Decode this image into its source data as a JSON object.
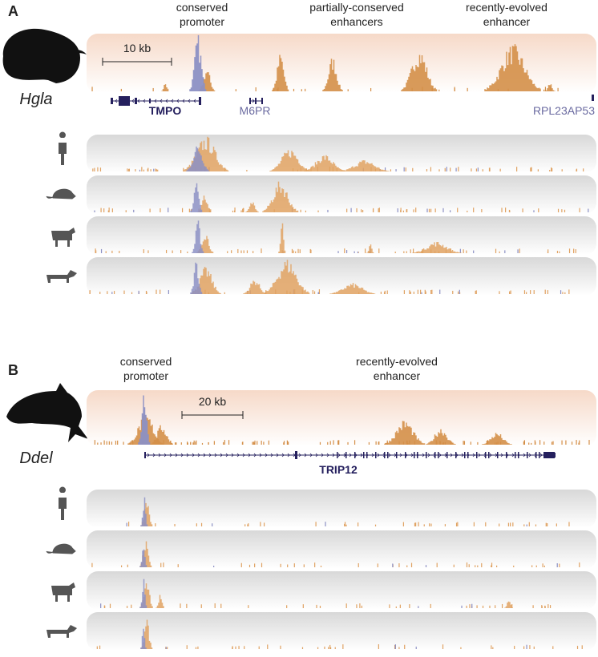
{
  "panels": [
    {
      "label": "A",
      "annotations": [
        {
          "lines": [
            "conserved",
            "promoter"
          ]
        },
        {
          "lines": [
            "partially-conserved",
            "enhancers"
          ]
        },
        {
          "lines": [
            "recently-evolved",
            "enhancer"
          ]
        }
      ],
      "species": "Hgla",
      "scale_bar": "10 kb",
      "genes": [
        "TMPO",
        "M6PR",
        "RPL23AP53"
      ]
    },
    {
      "label": "B",
      "annotations": [
        {
          "lines": [
            "conserved",
            "promoter"
          ]
        },
        {
          "lines": [
            "recently-evolved",
            "enhancer"
          ]
        }
      ],
      "species": "Ddel",
      "scale_bar": "20 kb",
      "genes": [
        "TRIP12"
      ]
    }
  ]
}
